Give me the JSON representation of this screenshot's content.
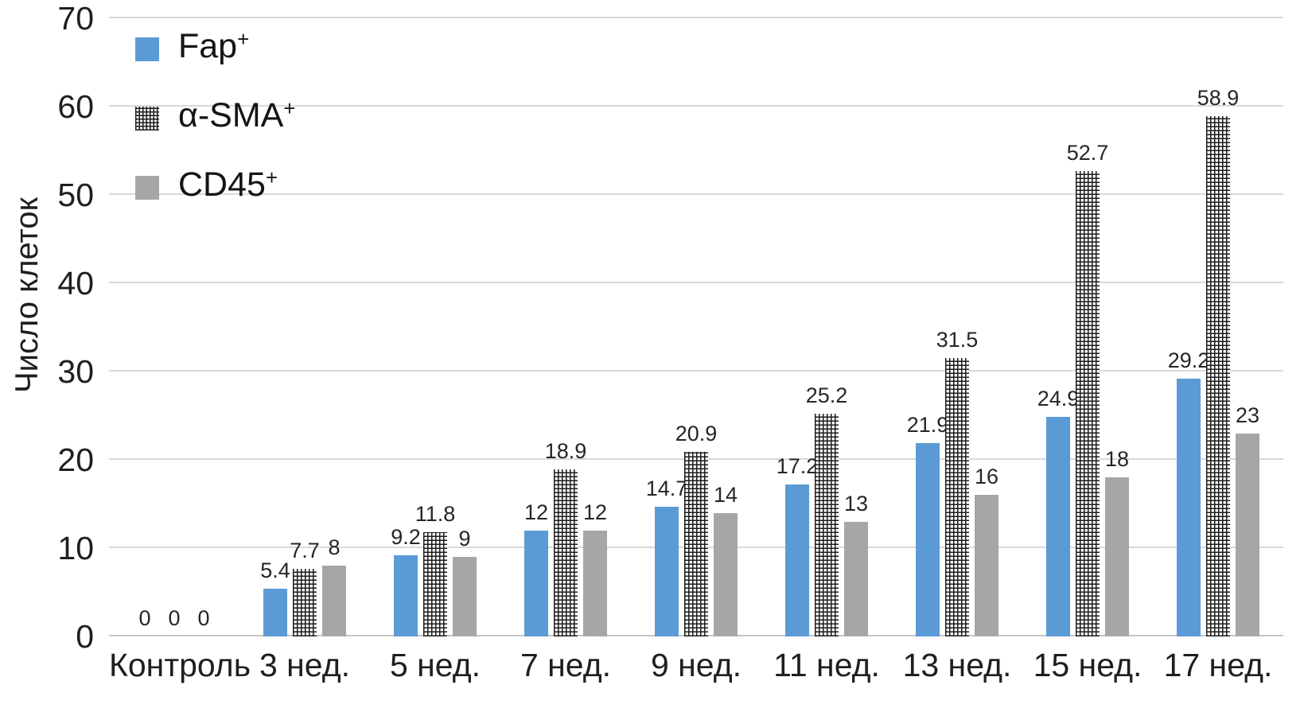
{
  "chart_data": {
    "type": "bar",
    "title": "",
    "xlabel": "",
    "ylabel": "Число клеток",
    "ylim": [
      0,
      70
    ],
    "yticks": [
      0,
      10,
      20,
      30,
      40,
      50,
      60,
      70
    ],
    "grid": true,
    "value_labels": true,
    "legend_position": "top-left-inside",
    "categories": [
      "Контроль",
      "3 нед.",
      "5 нед.",
      "7 нед.",
      "9 нед.",
      "11 нед.",
      "13 нед.",
      "15 нед.",
      "17 нед."
    ],
    "series": [
      {
        "name": "Fap",
        "sup": "+",
        "swatch": "solid-blue",
        "color": "#5b9bd5",
        "values": [
          0,
          5.4,
          9.2,
          12,
          14.7,
          17.2,
          21.9,
          24.9,
          29.2
        ]
      },
      {
        "name": "α-SMA",
        "sup": "+",
        "swatch": "black-crosshatch-on-white",
        "color": "#ffffff",
        "pattern_line_color": "#1b1b1b",
        "values": [
          0,
          7.7,
          11.8,
          18.9,
          20.9,
          25.2,
          31.5,
          52.7,
          58.9
        ]
      },
      {
        "name": "CD45",
        "sup": "+",
        "swatch": "solid-gray",
        "color": "#a6a6a6",
        "values": [
          0,
          8,
          9,
          12,
          14,
          13,
          16,
          18,
          23
        ]
      }
    ]
  },
  "colors": {
    "background": "#ffffff",
    "gridline": "#d9d9d9",
    "axis_line": "#c6c6c6",
    "text": "#1f1f1f"
  }
}
